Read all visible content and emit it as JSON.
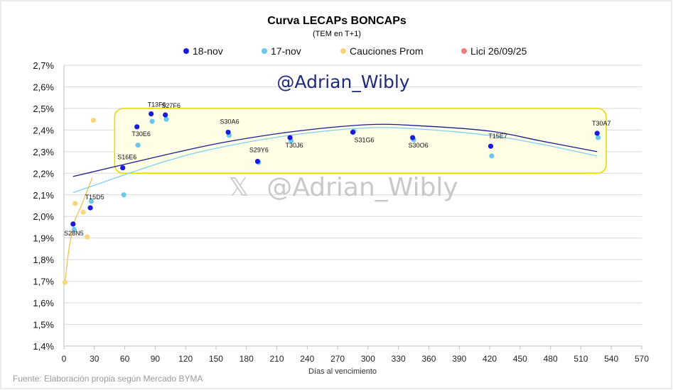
{
  "chart_data": {
    "type": "scatter",
    "title": "Curva LECAPs BONCAPs",
    "subtitle": "(TEM en T+1)",
    "xlabel": "Días al vencimiento",
    "ylabel": "",
    "xlim": [
      0,
      570
    ],
    "ylim": [
      1.4,
      2.7
    ],
    "x_ticks": [
      "0",
      "30",
      "60",
      "90",
      "120",
      "150",
      "180",
      "210",
      "240",
      "270",
      "300",
      "330",
      "360",
      "390",
      "420",
      "450",
      "480",
      "510",
      "540",
      "570"
    ],
    "y_ticks": [
      "1,4%",
      "1,5%",
      "1,6%",
      "1,7%",
      "1,8%",
      "1,9%",
      "2,0%",
      "2,1%",
      "2,2%",
      "2,3%",
      "2,4%",
      "2,5%",
      "2,6%",
      "2,7%"
    ],
    "grid": "horizontal",
    "legend_position": "top",
    "series": [
      {
        "name": "18-nov",
        "color": "#1a1adf",
        "points": [
          {
            "x": 9,
            "y": 1.965,
            "label": "S28N5"
          },
          {
            "x": 26,
            "y": 2.04,
            "label": "T15D5"
          },
          {
            "x": 58,
            "y": 2.225,
            "label": "S16E6"
          },
          {
            "x": 72,
            "y": 2.415,
            "label": "T30E6"
          },
          {
            "x": 86,
            "y": 2.475,
            "label": "T13F6"
          },
          {
            "x": 100,
            "y": 2.47,
            "label": "S27F6"
          },
          {
            "x": 162,
            "y": 2.39,
            "label": "S30A6"
          },
          {
            "x": 191,
            "y": 2.255,
            "label": "S29Y6"
          },
          {
            "x": 223,
            "y": 2.365,
            "label": "T30J6"
          },
          {
            "x": 285,
            "y": 2.39,
            "label": "S31G6"
          },
          {
            "x": 344,
            "y": 2.365,
            "label": "S30O6"
          },
          {
            "x": 421,
            "y": 2.325,
            "label": "T15E7"
          },
          {
            "x": 526,
            "y": 2.385,
            "label": "T30A7"
          }
        ]
      },
      {
        "name": "17-nov",
        "color": "#6cc8ea",
        "points": [
          {
            "x": 10,
            "y": 1.94
          },
          {
            "x": 27,
            "y": 2.07
          },
          {
            "x": 59,
            "y": 2.1
          },
          {
            "x": 73,
            "y": 2.33
          },
          {
            "x": 87,
            "y": 2.44
          },
          {
            "x": 101,
            "y": 2.45
          },
          {
            "x": 163,
            "y": 2.375
          },
          {
            "x": 192,
            "y": 2.25
          },
          {
            "x": 224,
            "y": 2.35
          },
          {
            "x": 286,
            "y": 2.395
          },
          {
            "x": 345,
            "y": 2.355
          },
          {
            "x": 422,
            "y": 2.28
          },
          {
            "x": 527,
            "y": 2.365
          }
        ]
      },
      {
        "name": "Cauciones Prom",
        "color": "#f7d57a",
        "points": [
          {
            "x": 1,
            "y": 1.695
          },
          {
            "x": 11,
            "y": 2.06
          },
          {
            "x": 19,
            "y": 2.02
          },
          {
            "x": 23,
            "y": 1.905
          },
          {
            "x": 29,
            "y": 2.445
          }
        ]
      },
      {
        "name": "Lici 26/09/25",
        "color": "#ef7d7d",
        "points": []
      }
    ],
    "trendlines": [
      {
        "series": "18-nov",
        "color": "#1b1b8f",
        "points": [
          [
            9,
            2.185
          ],
          [
            100,
            2.285
          ],
          [
            160,
            2.345
          ],
          [
            230,
            2.395
          ],
          [
            300,
            2.425
          ],
          [
            350,
            2.42
          ],
          [
            420,
            2.395
          ],
          [
            470,
            2.35
          ],
          [
            526,
            2.3
          ]
        ]
      },
      {
        "series": "17-nov",
        "color": "#7fd0ee",
        "points": [
          [
            9,
            2.11
          ],
          [
            100,
            2.255
          ],
          [
            160,
            2.325
          ],
          [
            230,
            2.38
          ],
          [
            300,
            2.41
          ],
          [
            350,
            2.405
          ],
          [
            420,
            2.375
          ],
          [
            470,
            2.335
          ],
          [
            526,
            2.28
          ]
        ]
      },
      {
        "series": "Cauciones Prom",
        "color": "#f0c24a",
        "points": [
          [
            1,
            1.695
          ],
          [
            5,
            1.85
          ],
          [
            10,
            1.97
          ],
          [
            18,
            2.06
          ],
          [
            28,
            2.18
          ]
        ]
      }
    ],
    "highlight_box": {
      "x_from": 50,
      "x_to": 535,
      "y_from": 2.2,
      "y_to": 2.5,
      "fill": "#fffde6",
      "stroke": "#e5d700"
    }
  },
  "watermark": {
    "handle_top": "@Adrian_Wibly",
    "handle_center": "@Adrian_Wibly",
    "x_glyph": "𝕏"
  },
  "source_note": "Fuente: Elaboración propia según Mercado BYMA"
}
